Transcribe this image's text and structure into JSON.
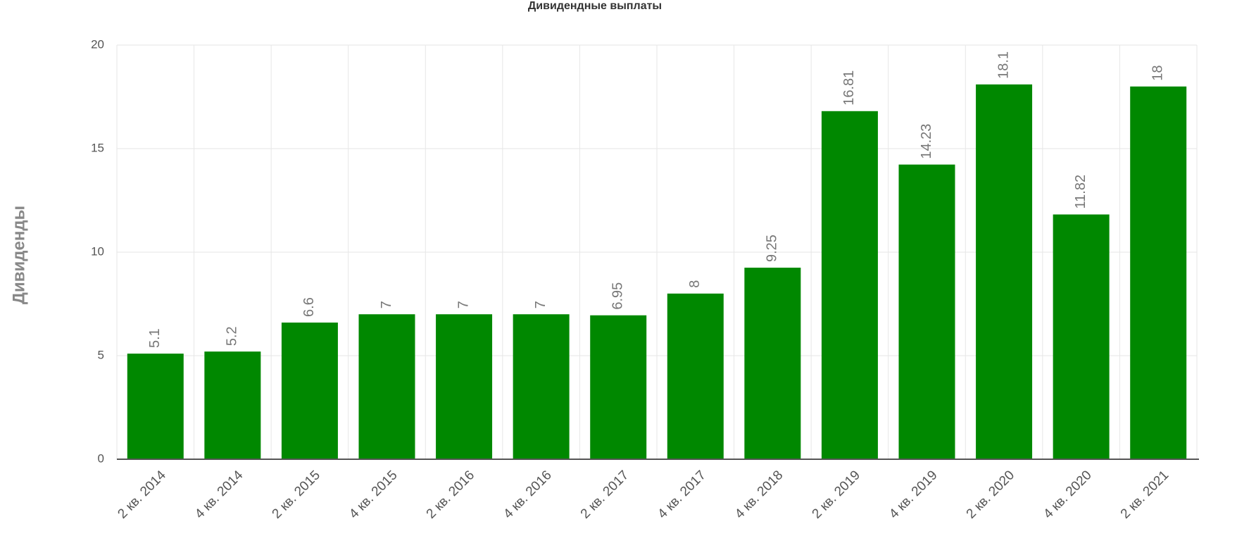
{
  "chart_data": {
    "type": "bar",
    "title": "Дивидендные выплаты",
    "y_label": "Дивиденды",
    "categories": [
      "2 кв. 2014",
      "4 кв. 2014",
      "2 кв. 2015",
      "4 кв. 2015",
      "2 кв. 2016",
      "4 кв. 2016",
      "2 кв. 2017",
      "4 кв. 2017",
      "4 кв. 2018",
      "2 кв. 2019",
      "4 кв. 2019",
      "2 кв. 2020",
      "4 кв. 2020",
      "2 кв. 2021"
    ],
    "values": [
      5.1,
      5.2,
      6.6,
      7,
      7,
      7,
      6.95,
      8,
      9.25,
      16.81,
      14.23,
      18.1,
      11.82,
      18
    ],
    "color": "#008800",
    "ylim": [
      0,
      20
    ],
    "yticks": [
      0,
      5,
      10,
      15,
      20
    ],
    "grid": true
  }
}
